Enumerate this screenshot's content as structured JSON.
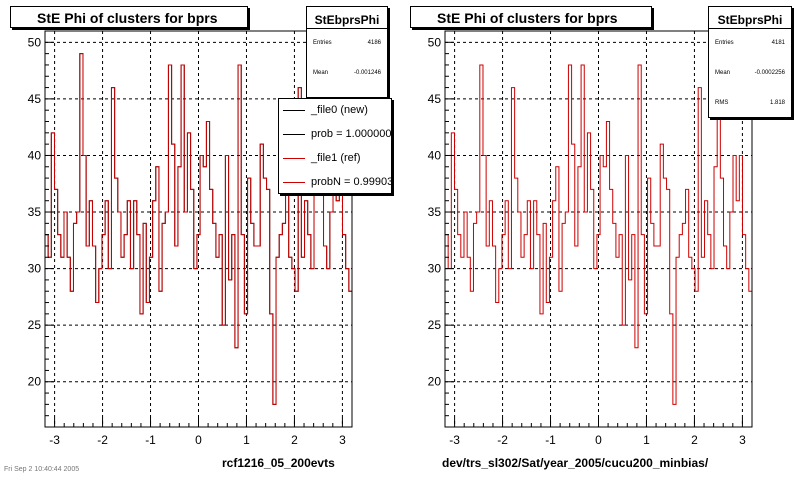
{
  "footnote": "Fri Sep 2 10:40:44 2005",
  "panels": [
    {
      "title": "StE Phi of clusters for bprs",
      "xcaption": "rcf1216_05_200evts",
      "stats": {
        "name": "StEbprsPhi",
        "rows": [
          {
            "key": "Entries",
            "value": "4186"
          },
          {
            "key": "Mean",
            "value": "-0.001246"
          }
        ]
      },
      "legend": [
        {
          "label": "_file0 (new)",
          "color": "#000000"
        },
        {
          "label": "prob = 1.000000",
          "color": "#000000"
        },
        {
          "label": "_file1 (ref)",
          "color": "#cc0000"
        },
        {
          "label": "probN = 0.999030",
          "color": "#cc0000"
        }
      ]
    },
    {
      "title": "StE Phi of clusters for bprs",
      "xcaption": "dev/trs_sl302/Sat/year_2005/cucu200_minbias/",
      "stats": {
        "name": "StEbprsPhi",
        "rows": [
          {
            "key": "Entries",
            "value": "4181"
          },
          {
            "key": "Mean",
            "value": "-0.0002256"
          },
          {
            "key": "RMS",
            "value": "1.818"
          }
        ]
      },
      "legend": []
    }
  ],
  "chart_data": [
    {
      "type": "histogram",
      "title": "StE Phi of clusters for bprs",
      "xlabel": "rcf1216_05_200evts",
      "xlim": [
        -3.2,
        3.2
      ],
      "ylim": [
        16,
        51
      ],
      "xticks": [
        -3,
        -2,
        -1,
        0,
        1,
        2,
        3
      ],
      "yticks": [
        20,
        25,
        30,
        35,
        40,
        45,
        50
      ],
      "grid": true,
      "legend_position": "top-right",
      "series": [
        {
          "name": "_file0 (new)",
          "color": "#000000",
          "values": [
            33,
            31,
            42,
            37,
            33,
            31,
            35,
            31,
            28,
            34,
            35,
            49,
            40,
            32,
            36,
            32,
            27,
            30,
            33,
            36,
            30,
            46,
            38,
            35,
            31,
            33,
            36,
            30,
            36,
            33,
            26,
            34,
            27,
            31,
            36,
            39,
            28,
            34,
            35,
            48,
            41,
            32,
            39,
            48,
            35,
            42,
            37,
            30,
            33,
            40,
            39,
            43,
            37,
            34,
            31,
            33,
            25,
            40,
            29,
            33,
            23,
            48,
            33,
            26,
            38,
            34,
            32,
            32,
            41,
            38,
            37,
            26,
            18,
            31,
            33,
            34,
            37,
            31,
            30,
            28,
            46,
            31,
            36,
            33,
            30,
            39,
            46,
            38,
            32,
            30,
            35,
            40,
            36,
            40,
            33,
            30,
            28
          ]
        },
        {
          "name": "_file1 (ref)",
          "color": "#cc0000",
          "values": [
            33,
            31,
            42,
            37,
            33,
            31,
            35,
            31,
            28,
            34,
            35,
            49,
            40,
            32,
            36,
            32,
            27,
            30,
            33,
            36,
            30,
            46,
            38,
            35,
            31,
            33,
            36,
            30,
            36,
            33,
            26,
            34,
            27,
            31,
            36,
            39,
            28,
            34,
            35,
            48,
            41,
            32,
            39,
            48,
            35,
            42,
            37,
            30,
            33,
            40,
            39,
            43,
            37,
            34,
            31,
            33,
            25,
            40,
            29,
            33,
            23,
            48,
            33,
            26,
            38,
            34,
            32,
            32,
            41,
            38,
            37,
            26,
            18,
            31,
            33,
            34,
            37,
            31,
            30,
            28,
            46,
            31,
            36,
            33,
            30,
            39,
            46,
            38,
            32,
            30,
            35,
            40,
            36,
            40,
            33,
            30,
            28
          ]
        }
      ]
    },
    {
      "type": "histogram",
      "title": "StE Phi of clusters for bprs",
      "xlabel": "dev/trs_sl302/Sat/year_2005/cucu200_minbias/",
      "xlim": [
        -3.2,
        3.2
      ],
      "ylim": [
        16,
        51
      ],
      "xticks": [
        -3,
        -2,
        -1,
        0,
        1,
        2,
        3
      ],
      "yticks": [
        20,
        25,
        30,
        35,
        40,
        45,
        50
      ],
      "grid": true,
      "series": [
        {
          "name": "",
          "color": "#cc0000",
          "values": [
            33,
            30,
            42,
            37,
            33,
            31,
            35,
            31,
            28,
            34,
            35,
            48,
            40,
            32,
            36,
            32,
            27,
            30,
            33,
            36,
            30,
            46,
            38,
            35,
            31,
            33,
            36,
            30,
            36,
            33,
            26,
            34,
            27,
            31,
            36,
            39,
            28,
            34,
            35,
            48,
            41,
            32,
            39,
            48,
            35,
            42,
            37,
            30,
            33,
            40,
            39,
            43,
            37,
            34,
            31,
            33,
            25,
            40,
            29,
            33,
            23,
            48,
            33,
            26,
            38,
            34,
            32,
            32,
            41,
            38,
            37,
            26,
            18,
            31,
            33,
            34,
            37,
            31,
            30,
            28,
            46,
            31,
            36,
            33,
            30,
            39,
            46,
            38,
            32,
            30,
            35,
            40,
            36,
            40,
            33,
            30,
            28
          ]
        }
      ]
    }
  ]
}
